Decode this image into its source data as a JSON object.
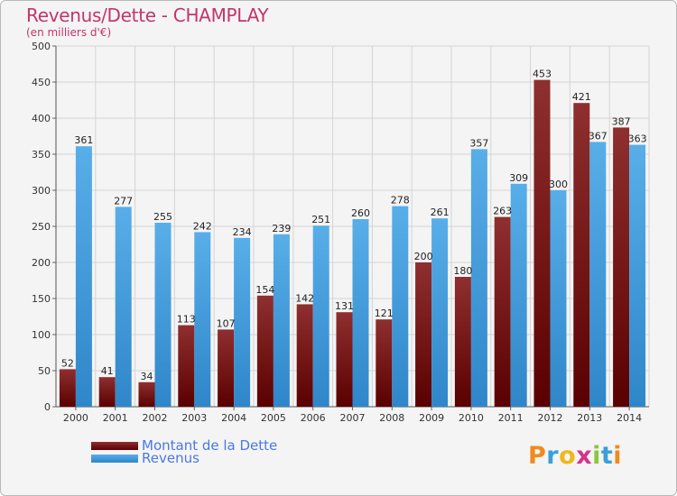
{
  "chart_data": {
    "type": "bar",
    "title": "Revenus/Dette - CHAMPLAY",
    "subtitle": "(en milliers d'€)",
    "categories": [
      "2000",
      "2001",
      "2002",
      "2003",
      "2004",
      "2005",
      "2006",
      "2007",
      "2008",
      "2009",
      "2010",
      "2011",
      "2012",
      "2013",
      "2014"
    ],
    "series": [
      {
        "name": "Montant de la Dette",
        "color": "#7a1010",
        "values": [
          52,
          41,
          34,
          113,
          107,
          154,
          142,
          131,
          121,
          200,
          180,
          263,
          453,
          421,
          387
        ]
      },
      {
        "name": "Revenus",
        "color": "#3e9be0",
        "values": [
          361,
          277,
          255,
          242,
          234,
          239,
          251,
          260,
          278,
          261,
          357,
          309,
          300,
          367,
          363
        ]
      }
    ],
    "ylim": [
      0,
      500
    ],
    "yticks": [
      0,
      50,
      100,
      150,
      200,
      250,
      300,
      350,
      400,
      450,
      500
    ],
    "grid": true,
    "legend_position": "bottom-left"
  },
  "logo": {
    "letters": [
      "P",
      "r",
      "o",
      "x",
      "i",
      "t",
      "i"
    ],
    "colors": [
      "#f08a1e",
      "#3aa0d8",
      "#f2b617",
      "#d6338a",
      "#8cc63f",
      "#3aa0d8",
      "#f08a1e"
    ]
  }
}
